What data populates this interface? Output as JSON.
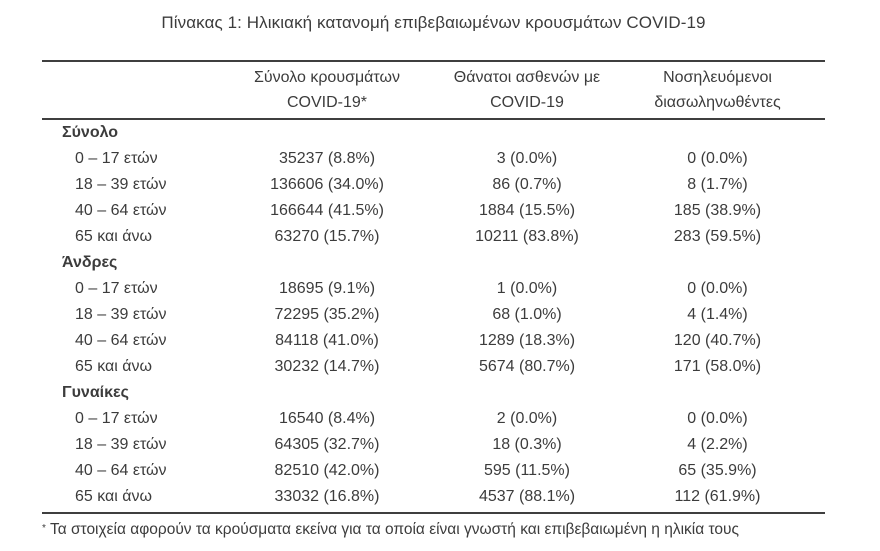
{
  "title": "Πίνακας 1: Ηλικιακή κατανομή επιβεβαιωμένων κρουσμάτων COVID-19",
  "text_color": "#3c3c3c",
  "rule_color": "#3f3f3f",
  "table": {
    "columns": [
      {
        "line1": "Σύνολο κρουσμάτων",
        "line2": "COVID-19*"
      },
      {
        "line1": "Θάνατοι ασθενών με",
        "line2": "COVID-19"
      },
      {
        "line1": "Νοσηλευόμενοι",
        "line2": "διασωληνωθέντες"
      }
    ],
    "sections": [
      {
        "label": "Σύνολο",
        "rows": [
          {
            "age": "0 – 17 ετών",
            "cases": "35237 (8.8%)",
            "deaths": "3 (0.0%)",
            "intubated": "0 (0.0%)"
          },
          {
            "age": "18 – 39 ετών",
            "cases": "136606 (34.0%)",
            "deaths": "86 (0.7%)",
            "intubated": "8 (1.7%)"
          },
          {
            "age": "40 – 64 ετών",
            "cases": "166644 (41.5%)",
            "deaths": "1884 (15.5%)",
            "intubated": "185 (38.9%)"
          },
          {
            "age": "65 και άνω",
            "cases": "63270 (15.7%)",
            "deaths": "10211 (83.8%)",
            "intubated": "283 (59.5%)"
          }
        ]
      },
      {
        "label": "Άνδρες",
        "rows": [
          {
            "age": "0 – 17 ετών",
            "cases": "18695 (9.1%)",
            "deaths": "1 (0.0%)",
            "intubated": "0 (0.0%)"
          },
          {
            "age": "18 – 39 ετών",
            "cases": "72295 (35.2%)",
            "deaths": "68 (1.0%)",
            "intubated": "4 (1.4%)"
          },
          {
            "age": "40 – 64 ετών",
            "cases": "84118 (41.0%)",
            "deaths": "1289 (18.3%)",
            "intubated": "120 (40.7%)"
          },
          {
            "age": "65 και άνω",
            "cases": "30232 (14.7%)",
            "deaths": "5674 (80.7%)",
            "intubated": "171 (58.0%)"
          }
        ]
      },
      {
        "label": "Γυναίκες",
        "rows": [
          {
            "age": "0 – 17 ετών",
            "cases": "16540 (8.4%)",
            "deaths": "2 (0.0%)",
            "intubated": "0 (0.0%)"
          },
          {
            "age": "18 – 39 ετών",
            "cases": "64305 (32.7%)",
            "deaths": "18 (0.3%)",
            "intubated": "4 (2.2%)"
          },
          {
            "age": "40 – 64 ετών",
            "cases": "82510 (42.0%)",
            "deaths": "595 (11.5%)",
            "intubated": "65 (35.9%)"
          },
          {
            "age": "65 και άνω",
            "cases": "33032 (16.8%)",
            "deaths": "4537 (88.1%)",
            "intubated": "112 (61.9%)"
          }
        ]
      }
    ]
  },
  "footnote": {
    "marker": "*",
    "text": "Τα στοιχεία αφορούν τα κρούσματα εκείνα για τα οποία είναι γνωστή και επιβεβαιωμένη η ηλικία τους"
  }
}
